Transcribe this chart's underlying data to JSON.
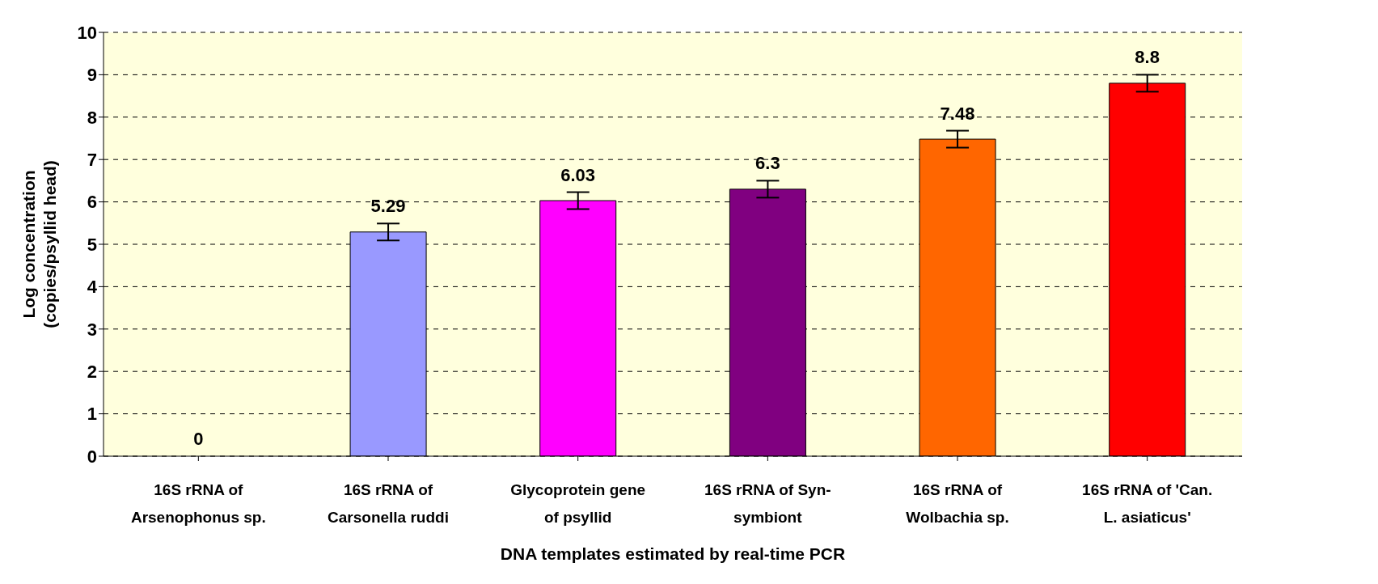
{
  "chart_data": {
    "type": "bar",
    "xlabel": "DNA templates estimated by real-time PCR",
    "ylabel": "Log concentration (copies/psyllid head)",
    "categories": [
      "16S rRNA of Arsenophonus sp.",
      "16S rRNA of Carsonella ruddi",
      "Glycoprotein gene of psyllid",
      "16S rRNA of Syn-symbiont",
      "16S rRNA of Wolbachia sp.",
      "16S rRNA of 'Can. L. asiaticus'"
    ],
    "values": [
      0,
      5.29,
      6.03,
      6.3,
      7.48,
      8.8
    ],
    "colors": [
      "#9999ff",
      "#9999ff",
      "#ff00ff",
      "#800080",
      "#ff6600",
      "#ff0000"
    ],
    "errors": [
      null,
      0.2,
      0.2,
      0.2,
      0.2,
      0.2
    ],
    "ylim": [
      0,
      10
    ],
    "yticks": [
      0,
      1,
      2,
      3,
      4,
      5,
      6,
      7,
      8,
      9,
      10
    ],
    "grid": "y",
    "data_labels": true,
    "legend": false
  }
}
